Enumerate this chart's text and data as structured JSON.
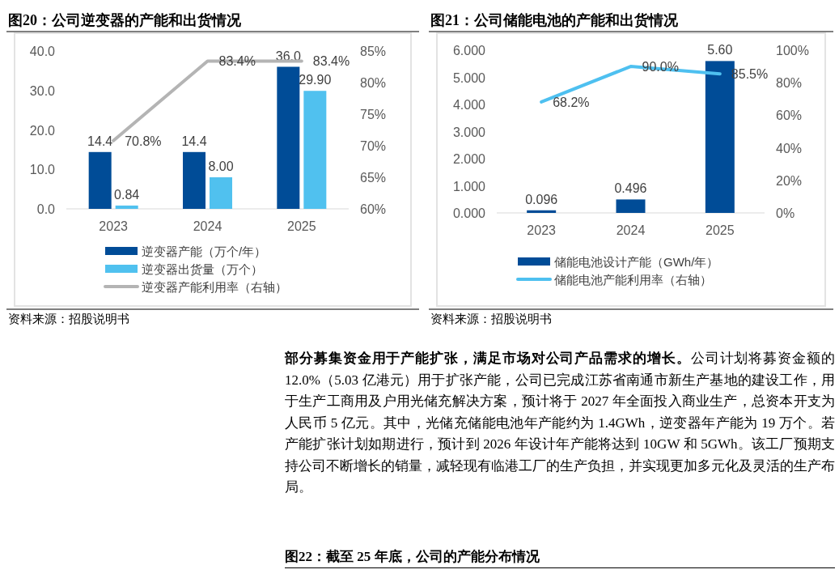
{
  "chart_data": [
    {
      "type": "bar",
      "title": "图20：公司逆变器的产能和出货情况",
      "categories": [
        "2023",
        "2024",
        "2025"
      ],
      "series": [
        {
          "name": "逆变器产能（万个/年）",
          "color": "#004c97",
          "values": [
            14.4,
            14.4,
            36.0
          ],
          "value_labels": [
            "14.4",
            "14.4",
            "36.0"
          ]
        },
        {
          "name": "逆变器出货量（万个）",
          "color": "#50c1ef",
          "values": [
            0.84,
            8.0,
            29.9
          ],
          "value_labels": [
            "0.84",
            "8.00",
            "29.90"
          ]
        },
        {
          "name": "逆变器产能利用率（右轴）",
          "type": "line",
          "axis": "y2",
          "color": "#b4b4b4",
          "values": [
            70.8,
            83.4,
            83.4
          ],
          "value_labels": [
            "70.8%",
            "83.4%",
            "83.4%"
          ]
        }
      ],
      "ylim": [
        0,
        40
      ],
      "yticks": [
        {
          "value": 0,
          "label": "0.0"
        },
        {
          "value": 10,
          "label": "10.0"
        },
        {
          "value": 20,
          "label": "20.0"
        },
        {
          "value": 30,
          "label": "30.0"
        },
        {
          "value": 40,
          "label": "40.0"
        }
      ],
      "y2lim": [
        60,
        85
      ],
      "y2ticks": [
        {
          "value": 60,
          "label": "60%"
        },
        {
          "value": 65,
          "label": "65%"
        },
        {
          "value": 70,
          "label": "70%"
        },
        {
          "value": 75,
          "label": "75%"
        },
        {
          "value": 80,
          "label": "80%"
        },
        {
          "value": 85,
          "label": "85%"
        }
      ],
      "legend": "bottom",
      "annotations": [
        "资料来源：招股说明书"
      ]
    },
    {
      "type": "bar",
      "title": "图21：公司储能电池的产能和出货情况",
      "categories": [
        "2023",
        "2024",
        "2025"
      ],
      "series": [
        {
          "name": "储能电池设计产能（GWh/年）",
          "color": "#004c97",
          "values": [
            0.096,
            0.496,
            5.6
          ],
          "value_labels": [
            "0.096",
            "0.496",
            "5.60"
          ]
        },
        {
          "name": "储能电池产能利用率（右轴）",
          "type": "line",
          "axis": "y2",
          "color": "#4ec0f0",
          "values": [
            68.2,
            90.0,
            85.5
          ],
          "value_labels": [
            "68.2%",
            "90.0%",
            "85.5%"
          ]
        }
      ],
      "ylim": [
        0,
        6
      ],
      "yticks": [
        {
          "value": 0,
          "label": "0.000"
        },
        {
          "value": 1,
          "label": "1.000"
        },
        {
          "value": 2,
          "label": "2.000"
        },
        {
          "value": 3,
          "label": "3.000"
        },
        {
          "value": 4,
          "label": "4.000"
        },
        {
          "value": 5,
          "label": "5.000"
        },
        {
          "value": 6,
          "label": "6.000"
        }
      ],
      "y2lim": [
        0,
        100
      ],
      "y2ticks": [
        {
          "value": 0,
          "label": "0%"
        },
        {
          "value": 20,
          "label": "20%"
        },
        {
          "value": 40,
          "label": "40%"
        },
        {
          "value": 60,
          "label": "60%"
        },
        {
          "value": 80,
          "label": "80%"
        },
        {
          "value": 100,
          "label": "100%"
        }
      ],
      "legend": "bottom",
      "annotations": [
        "资料来源：招股说明书"
      ]
    },
    {
      "type": "other",
      "annotations": [
        "部分募集资金用于产能扩张，满足市场对公司产品需求的增长。",
        "公司计划将募资金额的 12.0%（5.03 亿港元）用于扩张产能，公司已完成江苏省南通市新生产基地的建设工作，用于生产工商用及户用光储充解决方案，预计将于 2027 年全面投入商业生产，总资本开支为人民币 5 亿元。其中，光储充储能电池年产能约为 1.4GWh，逆变器年产能为 19 万个。若产能扩张计划如期进行，预计到 2026 年设计年产能将达到 10GW 和 5GWh。该工厂预期支持公司不断增长的销量，减轻现有临港工厂的生产负担，并实现更加多元化及灵活的生产布局。"
      ]
    },
    {
      "type": "other",
      "title": "图22：截至 25 年底，公司的产能分布情况"
    }
  ]
}
